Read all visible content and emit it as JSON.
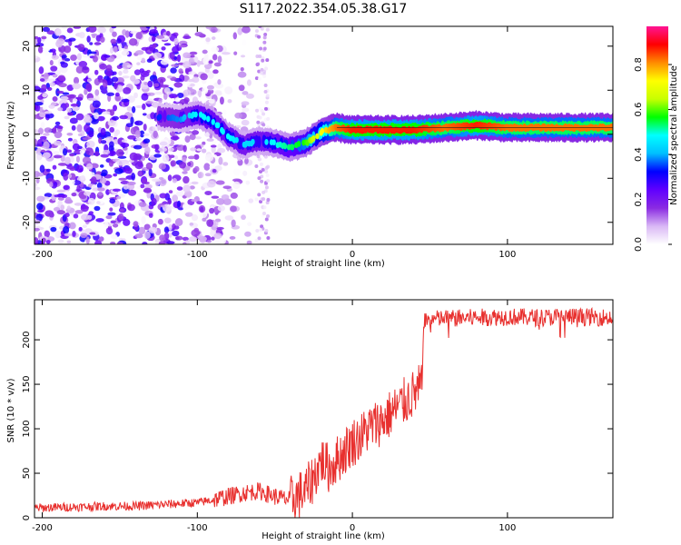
{
  "title": "S117.2022.354.05.38.G17",
  "chart_data": [
    {
      "type": "heatmap",
      "xlabel": "Height of straight line (km)",
      "ylabel": "Frequency (Hz)",
      "xlim": [
        -205,
        168
      ],
      "ylim": [
        -25,
        24.5
      ],
      "xticks": [
        -200,
        -100,
        0,
        100
      ],
      "yticks": [
        -20,
        -10,
        0,
        10,
        20
      ],
      "colorbar": {
        "label": "Normalized spectral amplitude",
        "range": [
          0,
          0.97
        ],
        "ticks": [
          0.0,
          0.2,
          0.4,
          0.6,
          0.8
        ],
        "colormap": [
          "#ffffff",
          "#d9b8f5",
          "#8a2be2",
          "#6000ff",
          "#0000ff",
          "#00bfff",
          "#00ffff",
          "#00ff00",
          "#c8ff00",
          "#ffff00",
          "#ff8c00",
          "#ff0000",
          "#ff1493"
        ]
      },
      "ridge": {
        "x": [
          -125,
          -110,
          -100,
          -90,
          -80,
          -70,
          -60,
          -50,
          -40,
          -30,
          -20,
          -10,
          0,
          20,
          40,
          60,
          80,
          100,
          120,
          140,
          168
        ],
        "freq": [
          4.0,
          3.5,
          4.5,
          3.0,
          -0.5,
          -2.5,
          -1.5,
          -2.0,
          -3.0,
          -2.0,
          0.5,
          1.5,
          1.0,
          1.0,
          1.0,
          1.5,
          2.0,
          1.5,
          1.5,
          1.5,
          1.5
        ],
        "peak_amplitude": [
          0.35,
          0.4,
          0.5,
          0.5,
          0.5,
          0.45,
          0.45,
          0.5,
          0.55,
          0.6,
          0.75,
          0.85,
          0.9,
          0.9,
          0.9,
          0.85,
          0.9,
          0.85,
          0.85,
          0.85,
          0.85
        ]
      }
    },
    {
      "type": "line",
      "xlabel": "Height of straight line (km)",
      "ylabel": "SNR (10 * v/v)",
      "xlim": [
        -205,
        168
      ],
      "ylim": [
        0,
        245
      ],
      "xticks": [
        -200,
        -100,
        0,
        100
      ],
      "yticks": [
        0,
        50,
        100,
        150,
        200
      ],
      "color": "#e8302e",
      "x": [
        -205,
        -180,
        -160,
        -140,
        -120,
        -100,
        -90,
        -80,
        -70,
        -60,
        -50,
        -40,
        -30,
        -25,
        -20,
        -15,
        -10,
        -5,
        0,
        5,
        10,
        20,
        30,
        40,
        45,
        46,
        50,
        60,
        80,
        100,
        120,
        140,
        168
      ],
      "y": [
        11,
        12,
        13,
        13,
        15,
        17,
        20,
        24,
        28,
        30,
        24,
        20,
        30,
        45,
        65,
        55,
        65,
        75,
        85,
        90,
        100,
        110,
        125,
        140,
        148,
        222,
        223,
        224,
        225,
        226,
        225,
        226,
        225
      ]
    }
  ]
}
